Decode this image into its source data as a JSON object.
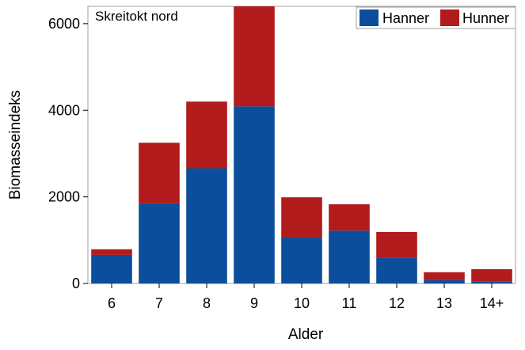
{
  "chart_data": {
    "type": "bar",
    "stacked": true,
    "title": "Skreitokt nord",
    "xlabel": "Alder",
    "ylabel": "Biomasseindeks",
    "categories": [
      "6",
      "7",
      "8",
      "9",
      "10",
      "11",
      "12",
      "13",
      "14+"
    ],
    "series": [
      {
        "name": "Hanner",
        "color": "#0b4e9b",
        "values": [
          660,
          1850,
          2660,
          4090,
          1060,
          1220,
          600,
          80,
          40
        ]
      },
      {
        "name": "Hunner",
        "color": "#b11b1b",
        "values": [
          130,
          1400,
          1540,
          2310,
          930,
          610,
          590,
          180,
          290
        ]
      }
    ],
    "ylim": [
      0,
      6400
    ],
    "yticks": [
      0,
      2000,
      4000,
      6000
    ],
    "legend_position": "top-right",
    "grid": false
  }
}
